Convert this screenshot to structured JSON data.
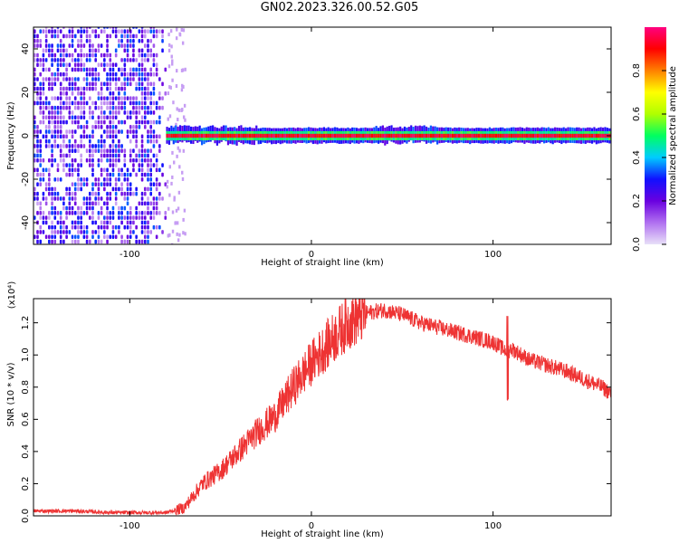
{
  "title": "GN02.2023.326.00.52.G05",
  "chart_data": [
    {
      "type": "heatmap",
      "xlabel": "Height of straight line (km)",
      "ylabel": "Frequency (Hz)",
      "xlim": [
        -153,
        165
      ],
      "ylim": [
        -50,
        50
      ],
      "xticks": [
        -100,
        0,
        100
      ],
      "yticks": [
        -40,
        -20,
        0,
        20,
        40
      ],
      "grid": false,
      "colorbar": {
        "label": "Normalized spectral amplitude",
        "range": [
          0,
          1
        ],
        "ticks": [
          0.0,
          0.2,
          0.4,
          0.6,
          0.8
        ],
        "colormap": [
          "#e8e0f8",
          "#b070f0",
          "#6a00e0",
          "#1010ff",
          "#00ccff",
          "#00ff60",
          "#b0ff00",
          "#ffff00",
          "#ff8000",
          "#ff0000",
          "#ff0080"
        ]
      },
      "regions": [
        {
          "x_range": [
            -153,
            -80
          ],
          "y_range": [
            -50,
            50
          ],
          "amplitude": [
            0.05,
            0.35
          ]
        },
        {
          "x_range": [
            -80,
            165
          ],
          "y_range": [
            -3,
            3
          ],
          "amplitude": [
            0.5,
            1.0
          ]
        }
      ]
    },
    {
      "type": "line",
      "xlabel": "Height of straight line (km)",
      "ylabel": "SNR (10 * v/v)",
      "y_multiplier": "(x10⁴)",
      "xlim": [
        -153,
        165
      ],
      "ylim": [
        0,
        1.35
      ],
      "xticks": [
        -100,
        0,
        100
      ],
      "yticks": [
        0.0,
        0.2,
        0.4,
        0.6,
        0.8,
        1.0,
        1.2
      ],
      "series": [
        {
          "color": "#ee3333",
          "x": [
            -153,
            -130,
            -110,
            -90,
            -80,
            -70,
            -60,
            -50,
            -40,
            -30,
            -20,
            -10,
            0,
            10,
            20,
            30,
            40,
            50,
            60,
            80,
            100,
            108,
            110,
            120,
            140,
            160,
            165
          ],
          "y": [
            0.03,
            0.03,
            0.02,
            0.02,
            0.02,
            0.05,
            0.2,
            0.28,
            0.4,
            0.52,
            0.62,
            0.8,
            0.95,
            1.08,
            1.2,
            1.26,
            1.28,
            1.25,
            1.2,
            1.14,
            1.08,
            1.02,
            1.04,
            0.97,
            0.9,
            0.8,
            0.76
          ]
        }
      ]
    }
  ]
}
